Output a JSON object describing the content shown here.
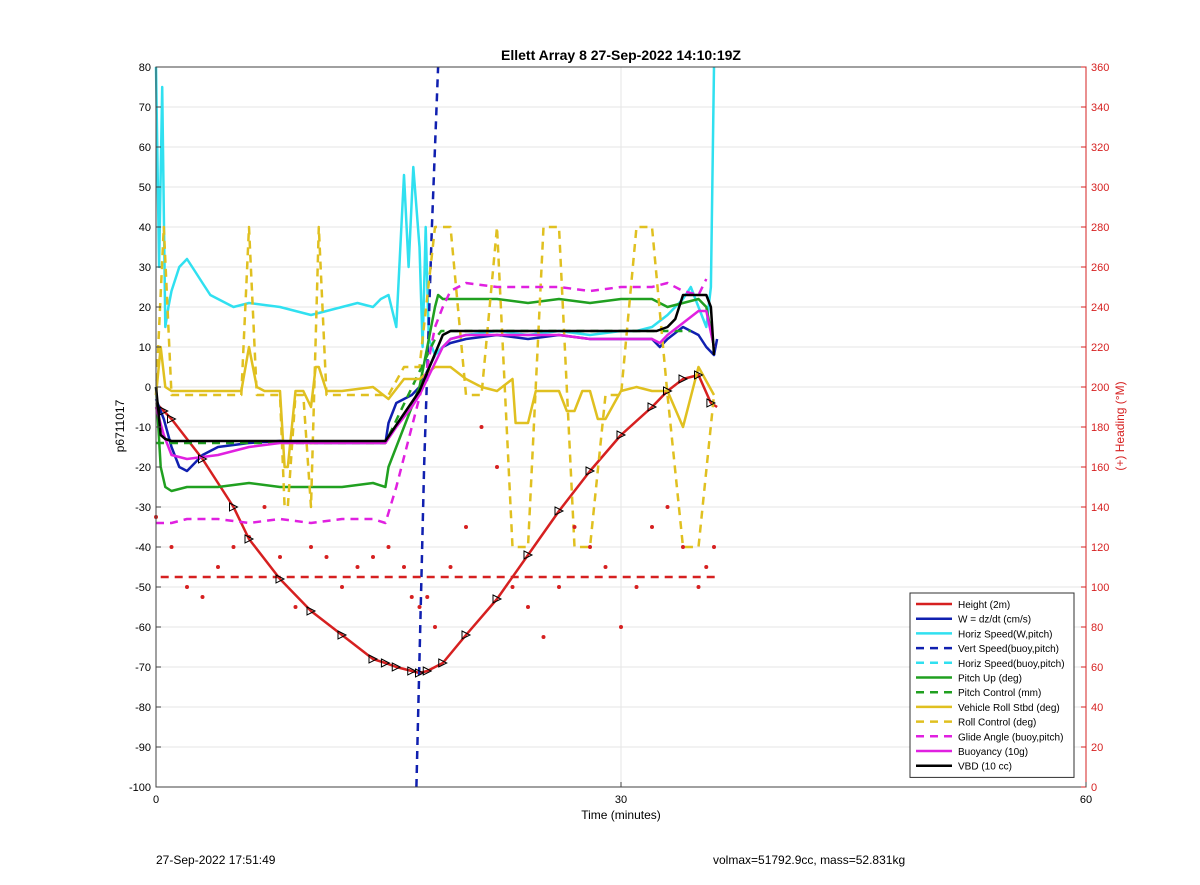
{
  "chart_data": {
    "type": "line",
    "title": "Ellett Array 8 27-Sep-2022 14:10:19Z",
    "xlabel": "Time (minutes)",
    "ylabel": "p6711017",
    "y2label": "(+) Heading (°M)",
    "xlim": [
      0,
      60
    ],
    "ylim": [
      -100,
      80
    ],
    "y2lim": [
      0,
      360
    ],
    "xticks": [
      0,
      30,
      60
    ],
    "yticks": [
      -100,
      -90,
      -80,
      -70,
      -60,
      -50,
      -40,
      -30,
      -20,
      -10,
      0,
      10,
      20,
      30,
      40,
      50,
      60,
      70,
      80
    ],
    "y2ticks": [
      0,
      20,
      40,
      60,
      80,
      100,
      120,
      140,
      160,
      180,
      200,
      220,
      240,
      260,
      280,
      300,
      320,
      340,
      360
    ],
    "grid": true,
    "legend_position": "bottom-right",
    "colors": {
      "height": "#d62020",
      "w": "#1020b0",
      "horiz": "#30e0f0",
      "pitch": "#20a020",
      "roll": "#e0c020",
      "glide": "#e020e0",
      "vbd": "#000000",
      "axis2": "#d62020"
    },
    "series": [
      {
        "name": "Height (2m)",
        "color": "#d62020",
        "style": "solid",
        "x": [
          0,
          0.5,
          1,
          3,
          5,
          6,
          8,
          10,
          12,
          14,
          14.8,
          15.5,
          16.5,
          17,
          17.5,
          18.5,
          20,
          22,
          24,
          26,
          28,
          30,
          32,
          33,
          34,
          35,
          35.8,
          36.2
        ],
        "y": [
          -4,
          -6,
          -8,
          -18,
          -30,
          -38,
          -48,
          -56,
          -62,
          -68,
          -69,
          -70,
          -71,
          -71.5,
          -71,
          -69,
          -62,
          -53,
          -42,
          -31,
          -21,
          -12,
          -5,
          -1,
          2,
          3,
          -4,
          -5
        ]
      },
      {
        "name": "W = dz/dt (cm/s)",
        "color": "#1020b0",
        "style": "solid",
        "x": [
          0,
          0.5,
          1,
          1.5,
          2,
          2.5,
          3,
          4,
          6,
          8,
          10,
          12,
          14,
          14.8,
          15,
          15.5,
          16,
          16.5,
          17,
          17.5,
          18,
          18.5,
          19,
          20,
          22,
          24,
          26,
          28,
          30,
          32,
          32.5,
          33,
          34,
          35,
          35.5,
          36,
          36.2
        ],
        "y": [
          -3,
          -8,
          -15,
          -20,
          -21,
          -19,
          -17,
          -15,
          -14,
          -13.5,
          -14,
          -14,
          -14,
          -14,
          -9,
          -4,
          -3,
          -2,
          0,
          4,
          8,
          10,
          11,
          12,
          13,
          12,
          13,
          12,
          12,
          12,
          10,
          12,
          15,
          13,
          10,
          8,
          12
        ]
      },
      {
        "name": "Horiz Speed(W,pitch)",
        "color": "#30e0f0",
        "style": "solid",
        "x": [
          0,
          0.2,
          0.4,
          0.6,
          0.8,
          1,
          1.5,
          2,
          2.5,
          3,
          3.5,
          4,
          5,
          6,
          8,
          10,
          12,
          13,
          14,
          14.5,
          15,
          15.5,
          16,
          16.3,
          16.6,
          17,
          17.2,
          17.4,
          17.6,
          18,
          18.5,
          19,
          20,
          22,
          24,
          26,
          28,
          30,
          31,
          32,
          33,
          34,
          34.5,
          35,
          35.5,
          35.8,
          36
        ],
        "y": [
          80,
          30,
          75,
          15,
          20,
          24,
          30,
          32,
          29,
          26,
          23,
          22,
          20,
          21,
          20,
          18,
          20,
          21,
          20,
          22,
          23,
          15,
          53,
          30,
          55,
          35,
          10,
          40,
          12,
          8,
          10,
          12,
          13,
          14,
          13,
          14,
          13,
          14,
          14,
          15,
          18,
          22,
          25,
          20,
          15,
          25,
          80
        ]
      },
      {
        "name": "Vert Speed(buoy,pitch)",
        "color": "#1020b0",
        "style": "dashed",
        "x": [
          16.8,
          17.3,
          17.8,
          18.2
        ],
        "y": [
          -100,
          -20,
          40,
          80
        ]
      },
      {
        "name": "Horiz Speed(buoy,pitch)",
        "color": "#30e0f0",
        "style": "dashed",
        "x": [],
        "y": []
      },
      {
        "name": "Pitch Up (deg)",
        "color": "#20a020",
        "style": "solid",
        "x": [
          0,
          0.3,
          0.6,
          1,
          2,
          4,
          6,
          8,
          10,
          12,
          14,
          14.8,
          15,
          16,
          17,
          17.5,
          18,
          18.2,
          18.5,
          20,
          22,
          24,
          26,
          28,
          30,
          32,
          33,
          34,
          35,
          35.5,
          36
        ],
        "y": [
          0,
          -20,
          -25,
          -26,
          -25,
          -25,
          -24,
          -25,
          -25,
          -25,
          -24,
          -25,
          -20,
          -10,
          0,
          10,
          20,
          23,
          22,
          22,
          22,
          21,
          22,
          21,
          22,
          22,
          20,
          21,
          22,
          20,
          10
        ]
      },
      {
        "name": "Pitch Control (mm)",
        "color": "#20a020",
        "style": "dashed",
        "x": [
          0,
          14.8,
          18,
          18.4,
          34.5
        ],
        "y": [
          -14,
          -14,
          12,
          14,
          14
        ]
      },
      {
        "name": "Vehicle Roll Stbd (deg)",
        "color": "#e0c020",
        "style": "solid",
        "x": [
          0,
          0.3,
          0.6,
          1,
          2,
          4,
          5.5,
          6,
          6.5,
          7,
          8,
          8.3,
          8.5,
          9,
          9.5,
          10,
          10.3,
          10.5,
          11,
          11.5,
          12,
          14,
          15,
          16,
          17,
          18,
          19,
          20,
          21,
          22,
          23,
          23.2,
          23.5,
          24,
          24.5,
          25,
          26,
          26.5,
          27,
          27.5,
          28,
          28.5,
          29,
          30,
          31,
          32,
          33,
          34,
          35,
          36
        ],
        "y": [
          -2,
          10,
          0,
          -1,
          -1,
          -1,
          -1,
          10,
          0,
          -1,
          -1,
          -20,
          -20,
          -1,
          -1,
          -5,
          5,
          5,
          -1,
          -1,
          -1,
          0,
          -3,
          2,
          2,
          5,
          5,
          2,
          0,
          -1,
          2,
          -9,
          -9,
          -9,
          -1,
          -1,
          -1,
          -6,
          -6,
          -1,
          -1,
          -8,
          -8,
          -1,
          0,
          -1,
          -1,
          -10,
          5,
          -2
        ]
      },
      {
        "name": "Roll Control (deg)",
        "color": "#e0c020",
        "style": "dashed",
        "x": [
          0,
          0.5,
          1,
          2,
          5.5,
          6,
          6.5,
          7,
          8,
          8.3,
          8.5,
          9,
          9.5,
          10,
          10.5,
          11,
          11.5,
          12,
          15,
          16,
          17,
          18,
          19,
          20,
          21,
          22,
          23,
          24,
          25,
          26,
          27,
          28,
          29,
          30,
          31,
          32,
          33,
          34,
          35,
          36
        ],
        "y": [
          -2,
          40,
          -2,
          -2,
          -2,
          40,
          -2,
          -2,
          -2,
          -30,
          -30,
          -2,
          -2,
          -30,
          40,
          -2,
          -2,
          -2,
          -2,
          5,
          5,
          40,
          40,
          -2,
          -2,
          40,
          -40,
          -40,
          40,
          40,
          -40,
          -40,
          -2,
          -2,
          40,
          40,
          -2,
          -40,
          -40,
          -2
        ]
      },
      {
        "name": "Glide Angle (buoy,pitch)",
        "color": "#e020e0",
        "style": "dashed",
        "x": [
          0,
          1,
          2,
          4,
          6,
          8,
          10,
          12,
          14,
          14.8,
          15.5,
          16.5,
          17.5,
          18,
          18.5,
          19,
          20,
          22,
          24,
          26,
          28,
          30,
          31,
          32,
          33,
          34,
          35,
          35.5
        ],
        "y": [
          -34,
          -34,
          -33,
          -33,
          -34,
          -33,
          -34,
          -33,
          -33,
          -34,
          -25,
          -10,
          5,
          15,
          20,
          24,
          26,
          25,
          25,
          25,
          24,
          25,
          25,
          25,
          26,
          24,
          23,
          27
        ]
      },
      {
        "name": "Buoyancy (10g)",
        "color": "#e020e0",
        "style": "solid",
        "x": [
          0,
          0.5,
          1,
          2,
          4,
          6,
          8,
          10,
          12,
          14,
          14.8,
          15.5,
          16.5,
          17,
          17.5,
          18,
          18.5,
          19,
          20,
          22,
          24,
          26,
          28,
          30,
          32,
          32.5,
          33,
          34,
          35,
          35.5,
          36
        ],
        "y": [
          -5,
          -12,
          -17,
          -18,
          -17,
          -15,
          -14,
          -14,
          -14,
          -14,
          -14,
          -10,
          -5,
          -2,
          2,
          6,
          10,
          12,
          13,
          13,
          13,
          13,
          12,
          12,
          12,
          11,
          13,
          16,
          19,
          19,
          10
        ]
      },
      {
        "name": "VBD (10 cc)",
        "color": "#000000",
        "style": "solid",
        "x": [
          0,
          0.3,
          0.6,
          1,
          14.8,
          17,
          18.5,
          19,
          32.3,
          33,
          33.5,
          34,
          35.5,
          35.8,
          36
        ],
        "y": [
          0,
          -12,
          -13,
          -13.5,
          -13.5,
          -1,
          13,
          14,
          14,
          15,
          17,
          23,
          23,
          20,
          8
        ]
      },
      {
        "name": "Heading Target",
        "color": "#d62020",
        "style": "dashed",
        "axis": "right",
        "x": [
          0.3,
          36.2
        ],
        "y": [
          105,
          105
        ]
      },
      {
        "name": "Heading",
        "color": "#d62020",
        "style": "dotted",
        "axis": "right",
        "x": [
          0,
          1,
          2,
          3,
          4,
          5,
          6,
          7,
          8,
          9,
          10,
          11,
          12,
          13,
          14,
          15,
          16,
          16.5,
          17,
          17.5,
          18,
          19,
          20,
          21,
          22,
          23,
          24,
          25,
          26,
          27,
          28,
          29,
          30,
          31,
          32,
          33,
          34,
          35,
          35.5,
          36
        ],
        "y": [
          135,
          120,
          100,
          95,
          110,
          120,
          125,
          140,
          115,
          90,
          120,
          115,
          100,
          110,
          115,
          120,
          110,
          95,
          90,
          95,
          80,
          110,
          130,
          180,
          160,
          100,
          90,
          75,
          100,
          130,
          120,
          110,
          80,
          100,
          130,
          140,
          120,
          100,
          110,
          120
        ]
      }
    ],
    "footer_left": "27-Sep-2022 17:51:49",
    "footer_right": "volmax=51792.9cc, mass=52.831kg"
  }
}
